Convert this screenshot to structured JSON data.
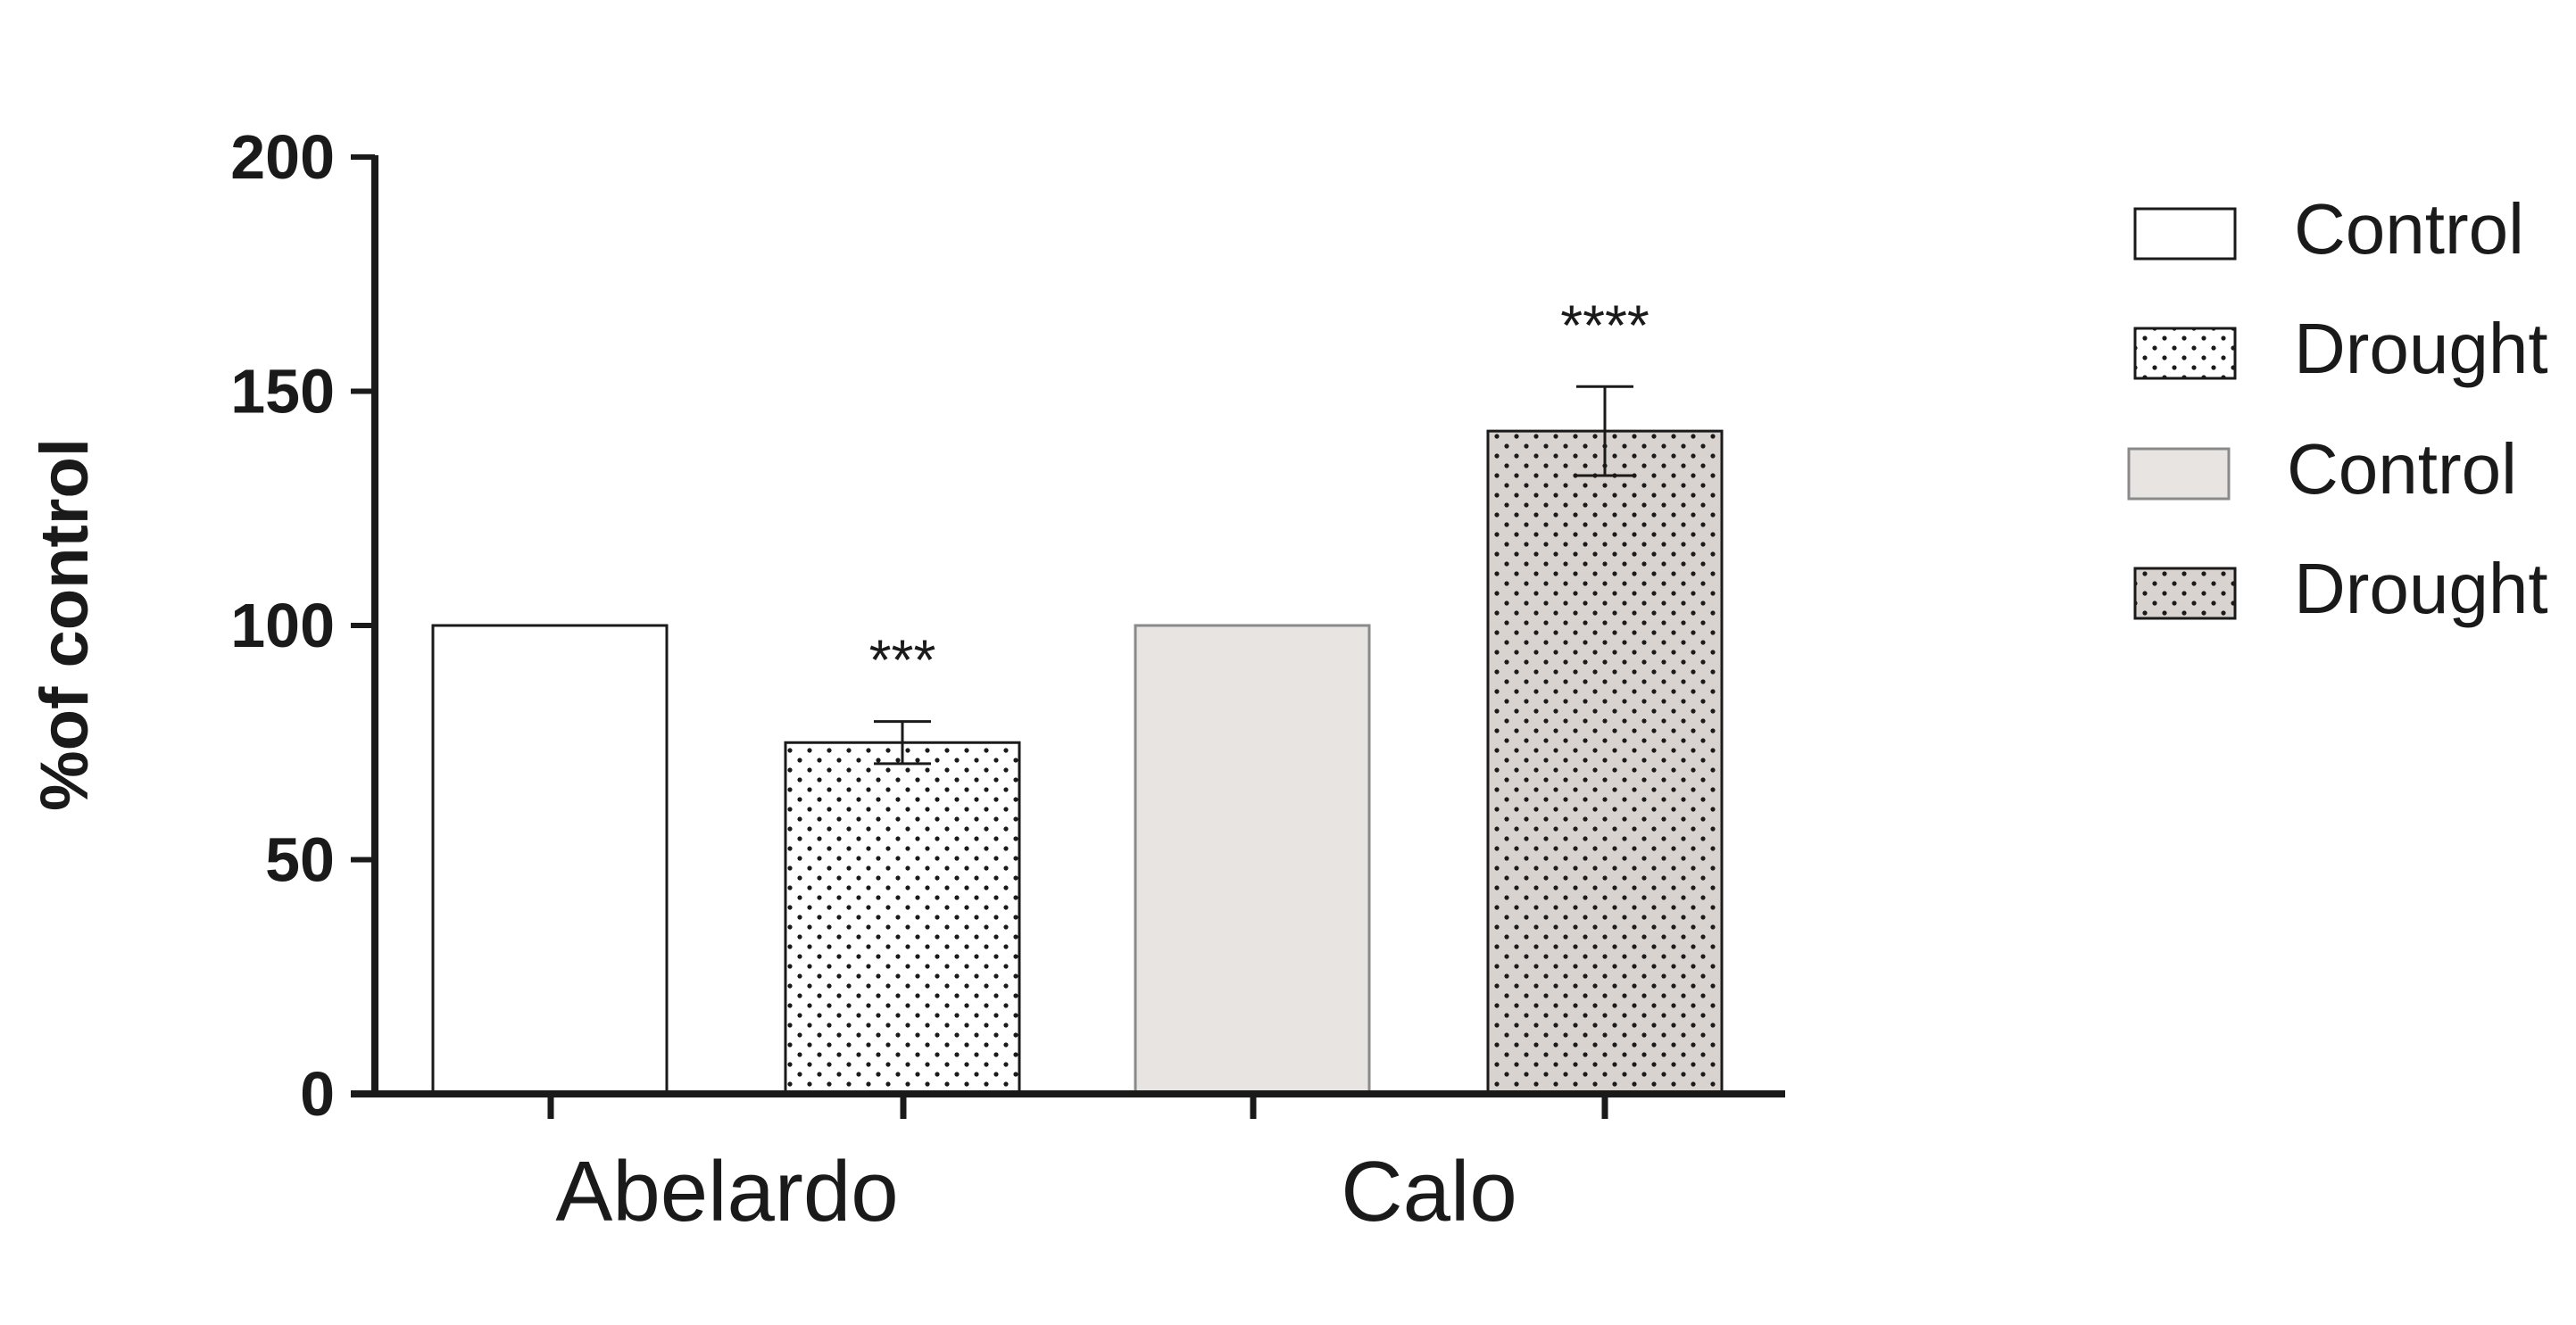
{
  "chart_data": {
    "type": "bar",
    "title": "",
    "xlabel": "",
    "ylabel": "%of control",
    "ylim": [
      0,
      200
    ],
    "yticks": [
      0,
      50,
      100,
      150,
      200
    ],
    "grid": false,
    "legend_position": "right",
    "groups": [
      "Abelardo",
      "Calo"
    ],
    "bars": [
      {
        "group": "Abelardo",
        "series": "Control",
        "value": 100,
        "error": null,
        "annotation": "",
        "fill": "#ffffff",
        "pattern": "none"
      },
      {
        "group": "Abelardo",
        "series": "Drought",
        "value": 75,
        "error": 4.5,
        "annotation": "***",
        "fill": "#ffffff",
        "pattern": "dots"
      },
      {
        "group": "Calo",
        "series": "Control",
        "value": 100,
        "error": null,
        "annotation": "",
        "fill": "#e8e4e1",
        "pattern": "none"
      },
      {
        "group": "Calo",
        "series": "Drought",
        "value": 141.5,
        "error": 9.5,
        "annotation": "****",
        "fill": "#d8d3cf",
        "pattern": "dots"
      }
    ],
    "legend": [
      {
        "label": "Control",
        "fill": "#ffffff",
        "pattern": "none",
        "stroke": "#1a1a1a"
      },
      {
        "label": "Drought",
        "fill": "#ffffff",
        "pattern": "dots",
        "stroke": "#1a1a1a"
      },
      {
        "label": "Control",
        "fill": "#e8e4e1",
        "pattern": "none",
        "stroke": "#8a8a8a"
      },
      {
        "label": "Drought",
        "fill": "#d8d3cf",
        "pattern": "dots",
        "stroke": "#1a1a1a"
      }
    ]
  }
}
